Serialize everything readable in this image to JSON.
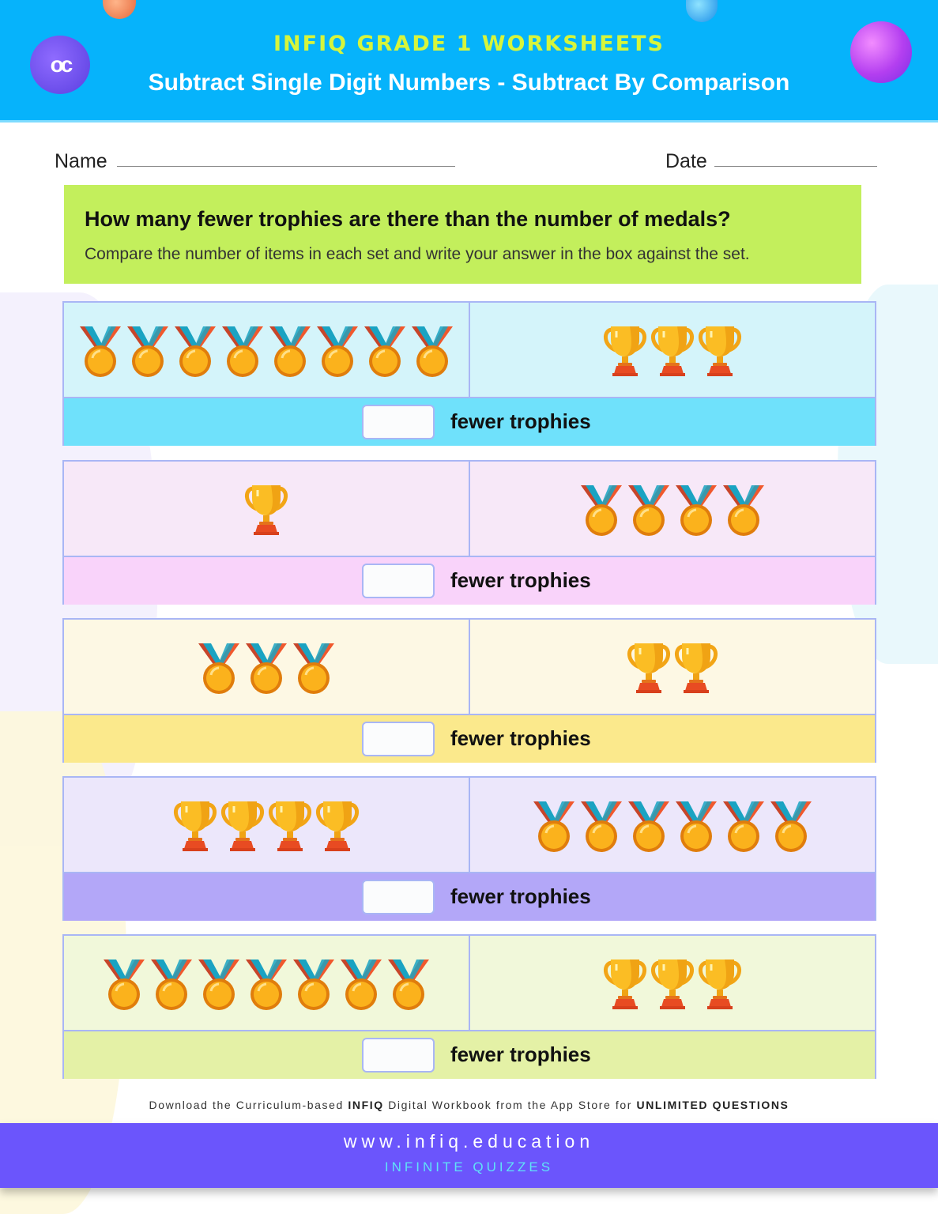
{
  "header": {
    "kicker": "INFIQ GRADE 1 WORKSHEETS",
    "title": "Subtract Single Digit Numbers - Subtract By Comparison",
    "logo_text": "oc",
    "bg_color": "#06b3fb"
  },
  "fields": {
    "name_label": "Name",
    "date_label": "Date"
  },
  "instructions": {
    "question": "How many fewer trophies are there than the number of medals?",
    "subtext": "Compare the number of items in each set and write your answer in the box against the set."
  },
  "rows": [
    {
      "left": {
        "item": "medal",
        "count": 8
      },
      "right": {
        "item": "trophy",
        "count": 3
      },
      "answer": "",
      "label": "fewer trophies",
      "bg": "#d4f4fa",
      "band": "#6fe1fb"
    },
    {
      "left": {
        "item": "trophy",
        "count": 1
      },
      "right": {
        "item": "medal",
        "count": 4
      },
      "answer": "",
      "label": "fewer trophies",
      "bg": "#f7e8f8",
      "band": "#f9d3fa"
    },
    {
      "left": {
        "item": "medal",
        "count": 3
      },
      "right": {
        "item": "trophy",
        "count": 2
      },
      "answer": "",
      "label": "fewer trophies",
      "bg": "#fdf8e4",
      "band": "#fbe98c"
    },
    {
      "left": {
        "item": "trophy",
        "count": 4
      },
      "right": {
        "item": "medal",
        "count": 6
      },
      "answer": "",
      "label": "fewer trophies",
      "bg": "#ece7fb",
      "band": "#b3a7f8"
    },
    {
      "left": {
        "item": "medal",
        "count": 7
      },
      "right": {
        "item": "trophy",
        "count": 3
      },
      "answer": "",
      "label": "fewer trophies",
      "bg": "#f1f8da",
      "band": "#e4f1a6"
    }
  ],
  "promo": {
    "part1": "Download the Curriculum-based ",
    "brand": "INFIQ",
    "part2": " Digital Workbook from the App Store for ",
    "cta": "UNLIMITED QUESTIONS"
  },
  "footer": {
    "url": "www.infiq.education",
    "tagline": "INFINITE QUIZZES",
    "bg_color": "#6b55fc"
  }
}
